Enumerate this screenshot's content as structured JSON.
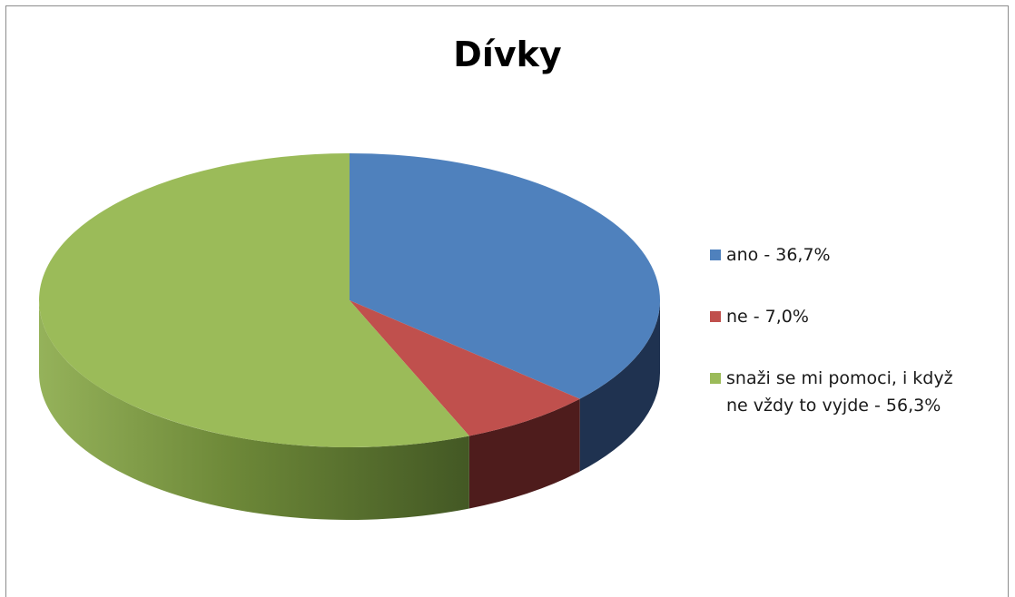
{
  "chart_data": {
    "type": "pie",
    "title": "Dívky",
    "three_d": true,
    "legend_position": "right",
    "slices": [
      {
        "label": "ano - 36,7%",
        "value": 36.7,
        "color": "#4f81bd",
        "side_color": "#1f3250"
      },
      {
        "label": "ne - 7,0%",
        "value": 7.0,
        "color": "#c0504d",
        "side_color": "#4e1c1c"
      },
      {
        "label": "snaži se mi pomoci, i když ne vždy to vyjde - 56,3%",
        "value": 56.3,
        "color": "#9bbb59",
        "side_color": "#5b7330"
      }
    ]
  }
}
